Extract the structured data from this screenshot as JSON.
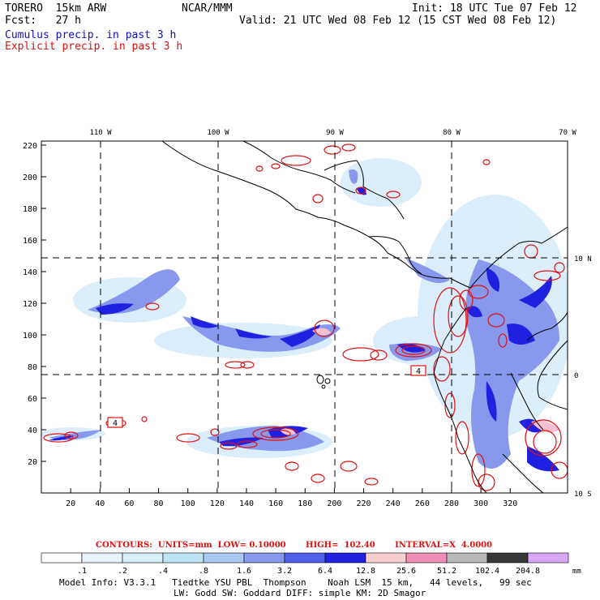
{
  "header": {
    "model": "TORERO  15km ARW",
    "org": "NCAR/MMM",
    "init": "Init: 18 UTC Tue 07 Feb 12",
    "fcst": "Fcst:   27 h",
    "valid": "Valid: 21 UTC Wed 08 Feb 12 (15 CST Wed 08 Feb 12)",
    "field_cumulus": "Cumulus precip. in past 3 h",
    "field_explicit": "Explicit precip. in past 3 h"
  },
  "map": {
    "lon_labels": [
      "110 W",
      "100 W",
      "90 W",
      "80 W",
      "70 W"
    ],
    "lat_labels": [
      "10 N",
      "0",
      "10 S"
    ],
    "x_ticks": [
      "20",
      "40",
      "60",
      "80",
      "100",
      "120",
      "140",
      "160",
      "180",
      "200",
      "220",
      "240",
      "260",
      "280",
      "300",
      "320"
    ],
    "y_ticks": [
      "20",
      "40",
      "60",
      "80",
      "100",
      "120",
      "140",
      "160",
      "180",
      "200",
      "220"
    ],
    "boxed_labels": [
      "4",
      "4"
    ]
  },
  "legend": {
    "contours_text": "CONTOURS:  UNITS=mm  LOW= 0.10000       HIGH=  102.40       INTERVAL=X  4.0000",
    "labels": [
      ".1",
      ".2",
      ".4",
      ".8",
      "1.6",
      "3.2",
      "6.4",
      "12.8",
      "25.6",
      "51.2",
      "102.4",
      "204.8"
    ],
    "units": "mm",
    "colors": [
      "#ffffff",
      "#e8f4ff",
      "#d8f0f8",
      "#bfe4f4",
      "#a8c8f0",
      "#8898ec",
      "#5060e8",
      "#2020e0",
      "#f8d0d0",
      "#f090b8",
      "#b8b8b8",
      "#383838",
      "#d8a8f8"
    ]
  },
  "footer": {
    "line1": "Model Info: V3.3.1   Tiedtke YSU PBL  Thompson    Noah LSM  15 km,   44 levels,   99 sec",
    "line2": "LW: Godd SW: Goddard DIFF: simple KM: 2D Smagor"
  }
}
